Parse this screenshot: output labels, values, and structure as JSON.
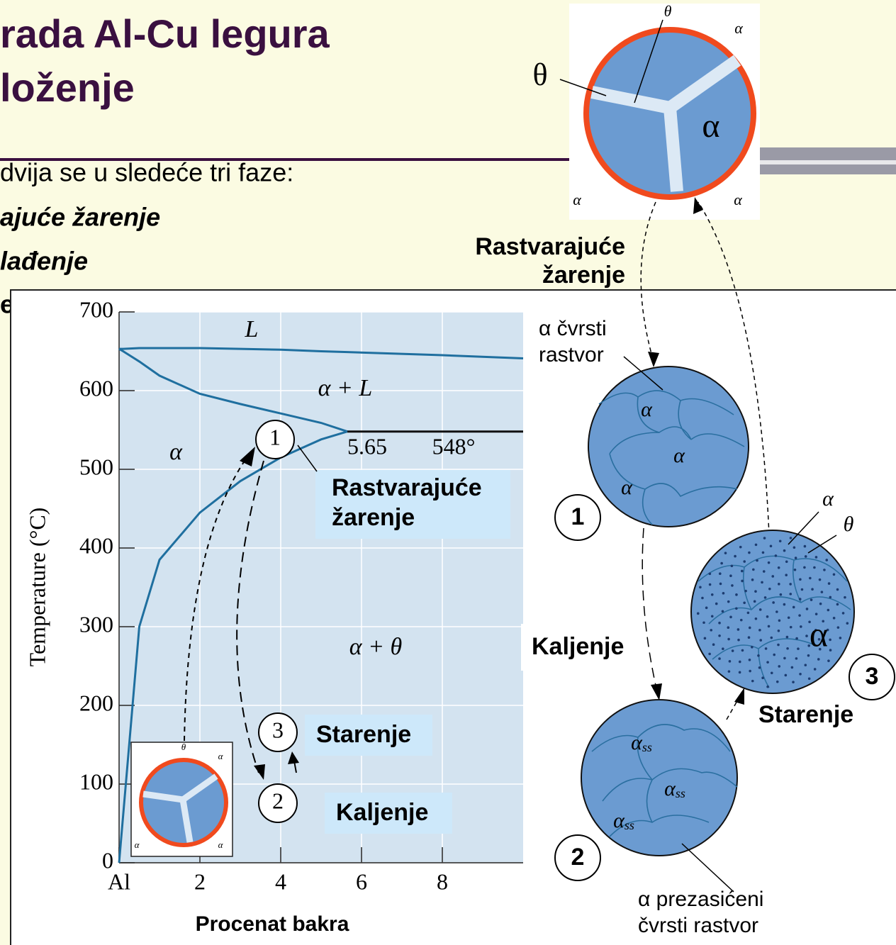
{
  "slide": {
    "title": [
      "rada Al-Cu legura",
      "loženje"
    ],
    "body": [
      "dvija se u sledeće tri faze:",
      "ajuće žarenje",
      "lađenje",
      "e"
    ]
  },
  "chart_data": {
    "type": "line",
    "xlabel": "Procenat bakra",
    "ylabel": "Temperature (°C)",
    "x": [
      0,
      0.1,
      0.5,
      1,
      2,
      3,
      4,
      5,
      5.65,
      8,
      10
    ],
    "series": [
      {
        "color": "#1f6f9f",
        "values": [
          653,
          653,
          654,
          654,
          654,
          653,
          652,
          650,
          649,
          645,
          641
        ]
      },
      {
        "color": "#1f6f9f",
        "values": [
          653,
          650,
          637,
          619,
          596,
          583,
          571,
          559,
          548,
          null,
          null
        ]
      },
      {
        "color": "#1f6f9f",
        "values": [
          0,
          60,
          300,
          385,
          445,
          485,
          515,
          538,
          548,
          null,
          null
        ]
      },
      {
        "color": "#111111",
        "values": [
          null,
          null,
          null,
          null,
          null,
          null,
          null,
          null,
          548,
          548,
          548
        ]
      }
    ],
    "xlim": [
      0,
      10
    ],
    "ylim": [
      0,
      700
    ],
    "xticks": [
      {
        "value": 0,
        "label": "Al"
      },
      2,
      4,
      6,
      8
    ],
    "yticks": [
      0,
      100,
      200,
      300,
      400,
      500,
      600,
      700
    ],
    "grid": true,
    "annotations": [
      "L",
      "α + L",
      "α",
      "5.65",
      "548°",
      "α + θ",
      "1",
      "2",
      "3"
    ],
    "steps": {
      "solution": [
        "Rastvarajuće",
        "žarenje"
      ],
      "aging": "Starenje",
      "quench": "Kaljenje"
    },
    "inset_labels": [
      "θ",
      "α",
      "α",
      "α"
    ]
  },
  "micrographs": {
    "top": {
      "labels": [
        "θ",
        "α",
        "θ",
        "α",
        "α",
        "α"
      ],
      "caption": [
        "Rastvarajuće",
        "žarenje"
      ]
    },
    "one": {
      "number": "1",
      "labels": [
        "α",
        "α",
        "α"
      ],
      "caption": [
        "α čvrsti",
        "rastvor"
      ]
    },
    "quench": "Kaljenje",
    "two": {
      "number": "2",
      "labels": [
        "α",
        "α",
        "α"
      ],
      "sub": "ss",
      "caption": [
        "α prezasićeni",
        "čvrsti rastvor"
      ]
    },
    "three": {
      "number": "3",
      "labels": [
        "α",
        "θ",
        "α"
      ]
    },
    "aging": "Starenje"
  }
}
